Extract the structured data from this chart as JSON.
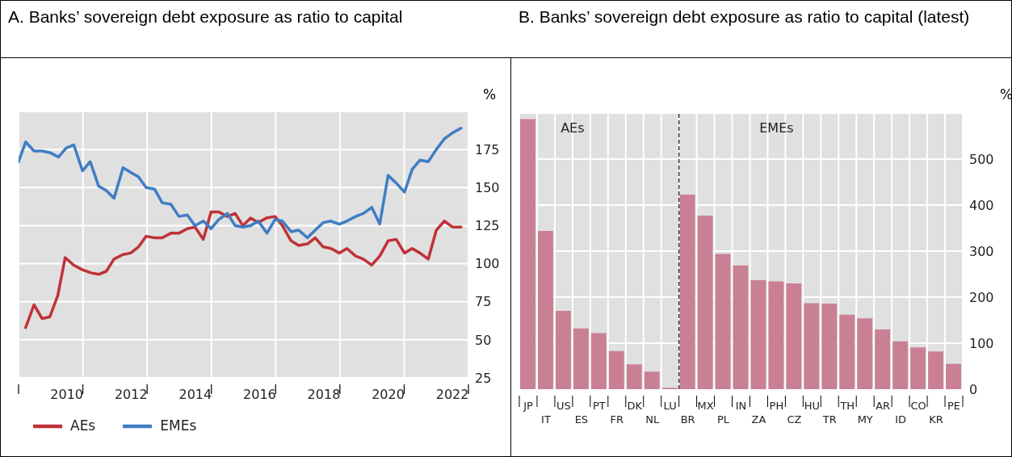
{
  "chart_data": [
    {
      "type": "line",
      "title": "A. Banks’ sovereign debt exposure as ratio to capital",
      "ylabel": "%",
      "xlim": [
        2009,
        2023
      ],
      "xticks": [
        {
          "value": 2009,
          "label": null
        },
        {
          "value": 2010.5,
          "label": "2010"
        },
        {
          "value": 2011,
          "label": null
        },
        {
          "value": 2012.5,
          "label": "2012"
        },
        {
          "value": 2013,
          "label": null
        },
        {
          "value": 2014.5,
          "label": "2014"
        },
        {
          "value": 2015,
          "label": null
        },
        {
          "value": 2016.5,
          "label": "2016"
        },
        {
          "value": 2017,
          "label": null
        },
        {
          "value": 2018.5,
          "label": "2018"
        },
        {
          "value": 2019,
          "label": null
        },
        {
          "value": 2020.5,
          "label": "2020"
        },
        {
          "value": 2021,
          "label": null
        },
        {
          "value": 2022.5,
          "label": "2022"
        },
        {
          "value": 2023,
          "label": null
        }
      ],
      "ylim": [
        25,
        200
      ],
      "yticks": [
        25,
        50,
        75,
        100,
        125,
        150,
        175
      ],
      "grid": true,
      "legend": "bottom",
      "series": [
        {
          "name": "AEs",
          "color": "#bf3237",
          "x": [
            2009.22,
            2009.48,
            2009.73,
            2009.97,
            2010.22,
            2010.45,
            2010.72,
            2010.99,
            2011.25,
            2011.49,
            2011.73,
            2011.97,
            2012.25,
            2012.49,
            2012.73,
            2012.97,
            2013.23,
            2013.47,
            2013.74,
            2013.99,
            2014.25,
            2014.49,
            2014.75,
            2014.99,
            2015.23,
            2015.5,
            2015.74,
            2015.98,
            2016.22,
            2016.46,
            2016.71,
            2016.98,
            2017.21,
            2017.48,
            2017.72,
            2017.99,
            2018.23,
            2018.48,
            2018.72,
            2018.98,
            2019.22,
            2019.49,
            2019.73,
            2019.99,
            2020.24,
            2020.5,
            2020.75,
            2021.01,
            2021.25,
            2021.49,
            2021.75,
            2022.0,
            2022.25,
            2022.51,
            2022.77
          ],
          "values": [
            58,
            73,
            64,
            65,
            79,
            104,
            99,
            96,
            94,
            93,
            95,
            103,
            106,
            107,
            111,
            118,
            117,
            117,
            120,
            120,
            123,
            124,
            116,
            134,
            134,
            131,
            133,
            125,
            130,
            127,
            130,
            131,
            125,
            115,
            112,
            113,
            117,
            111,
            110,
            107,
            110,
            105,
            103,
            99,
            105,
            115,
            116,
            107,
            110,
            107,
            103,
            122,
            128,
            124,
            124
          ]
        },
        {
          "name": "EMEs",
          "color": "#3f7dc4",
          "x": [
            2009.0,
            2009.22,
            2009.48,
            2009.73,
            2009.97,
            2010.24,
            2010.48,
            2010.72,
            2010.99,
            2011.23,
            2011.49,
            2011.73,
            2011.97,
            2012.25,
            2012.49,
            2012.73,
            2012.97,
            2013.23,
            2013.47,
            2013.74,
            2013.99,
            2014.25,
            2014.49,
            2014.75,
            2014.99,
            2015.23,
            2015.5,
            2015.74,
            2015.98,
            2016.22,
            2016.46,
            2016.73,
            2016.98,
            2017.21,
            2017.48,
            2017.72,
            2017.99,
            2018.23,
            2018.48,
            2018.72,
            2018.98,
            2019.22,
            2019.49,
            2019.73,
            2019.99,
            2020.24,
            2020.5,
            2020.75,
            2021.01,
            2021.25,
            2021.49,
            2021.75,
            2022.0,
            2022.25,
            2022.51,
            2022.77
          ],
          "values": [
            167,
            180,
            174,
            174,
            173,
            170,
            176,
            178,
            161,
            167,
            151,
            148,
            143,
            163,
            160,
            157,
            150,
            149,
            140,
            139,
            131,
            132,
            125,
            128,
            123,
            129,
            133,
            125,
            124,
            125,
            128,
            120,
            129,
            128,
            121,
            122,
            117,
            122,
            127,
            128,
            126,
            128,
            131,
            133,
            137,
            126,
            158,
            153,
            147,
            162,
            168,
            167,
            175,
            182,
            186,
            189
          ]
        }
      ]
    },
    {
      "type": "bar",
      "title": "B. Banks’ sovereign debt exposure as ratio to capital (latest)",
      "ylabel": "%",
      "categories": [
        "JP",
        "IT",
        "US",
        "ES",
        "PT",
        "FR",
        "DK",
        "NL",
        "LU",
        "BR",
        "MX",
        "PL",
        "IN",
        "ZA",
        "PH",
        "CZ",
        "HU",
        "TR",
        "TH",
        "MY",
        "AR",
        "ID",
        "CO",
        "KR",
        "PE"
      ],
      "values": [
        587,
        344,
        170,
        132,
        122,
        83,
        54,
        38,
        3,
        423,
        377,
        294,
        269,
        237,
        234,
        230,
        187,
        186,
        162,
        154,
        130,
        104,
        91,
        82,
        55
      ],
      "color": "#c98095",
      "ylim": [
        0,
        600
      ],
      "yticks": [
        0,
        100,
        200,
        300,
        400,
        500
      ],
      "grid": true,
      "ref_lines": [
        {
          "axis": "x",
          "value": "BR",
          "color": "#333333",
          "line_style": "dashed"
        }
      ],
      "annotations": [
        "AEs",
        "EMEs"
      ]
    }
  ]
}
